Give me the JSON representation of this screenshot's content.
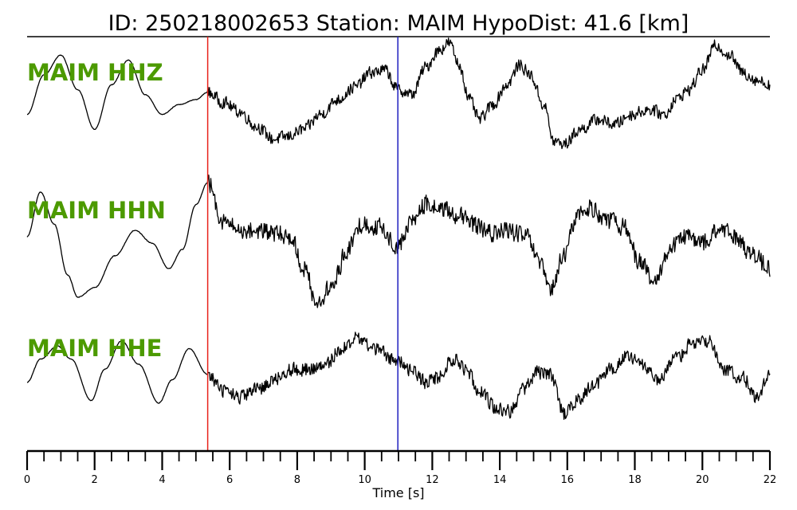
{
  "header": {
    "title": "ID: 250218002653   Station: MAIM   HypoDist:    41.6 [km]"
  },
  "colors": {
    "label": "#4c9a00",
    "p_pick": "#e8211b",
    "s_pick": "#1f1fbf",
    "trace": "#000000"
  },
  "chart_data": {
    "type": "line",
    "xlabel": "Time [s]",
    "xlim": [
      0,
      22
    ],
    "major_ticks": [
      0,
      2,
      4,
      6,
      8,
      10,
      12,
      14,
      16,
      18,
      20,
      22
    ],
    "minor_tick_step": 0.5,
    "picks": [
      {
        "phase": "P",
        "time": 5.35,
        "color": "#e8211b"
      },
      {
        "phase": "S",
        "time": 10.98,
        "color": "#1f1fbf"
      }
    ],
    "series": [
      {
        "name": "MAIM HHZ",
        "t": [
          0.0,
          0.5,
          1.0,
          1.5,
          2.0,
          2.5,
          3.0,
          3.5,
          4.0,
          4.5,
          5.0,
          5.35,
          5.8,
          6.3,
          6.8,
          7.3,
          7.7,
          8.2,
          8.7,
          9.2,
          9.7,
          10.2,
          10.6,
          10.98,
          11.4,
          11.8,
          12.2,
          12.5,
          12.8,
          13.1,
          13.4,
          13.8,
          14.2,
          14.6,
          14.9,
          15.3,
          15.6,
          15.9,
          16.4,
          16.9,
          17.4,
          17.9,
          18.4,
          18.9,
          19.2,
          19.6,
          20.0,
          20.4,
          20.8,
          21.2,
          21.6,
          22.0
        ],
        "y": [
          -0.3,
          0.5,
          0.9,
          0.2,
          -0.6,
          0.3,
          0.8,
          0.1,
          -0.3,
          -0.1,
          0.0,
          0.15,
          -0.05,
          -0.25,
          -0.55,
          -0.8,
          -0.75,
          -0.6,
          -0.3,
          0.0,
          0.25,
          0.55,
          0.6,
          0.2,
          0.1,
          0.65,
          1.0,
          1.15,
          0.7,
          0.0,
          -0.4,
          -0.1,
          0.3,
          0.7,
          0.5,
          -0.1,
          -0.85,
          -0.9,
          -0.6,
          -0.4,
          -0.5,
          -0.3,
          -0.2,
          -0.3,
          0.0,
          0.2,
          0.6,
          1.1,
          0.9,
          0.55,
          0.4,
          0.3
        ],
        "noise_from": 5.35,
        "noise": 0.12
      },
      {
        "name": "MAIM HHN",
        "t": [
          0.0,
          0.4,
          0.8,
          1.2,
          1.5,
          2.0,
          2.6,
          3.2,
          3.7,
          4.2,
          4.6,
          5.0,
          5.35,
          5.8,
          6.3,
          6.8,
          7.3,
          7.8,
          8.2,
          8.6,
          9.0,
          9.5,
          9.9,
          10.4,
          10.98,
          11.4,
          11.8,
          12.2,
          12.7,
          13.2,
          13.7,
          14.2,
          14.8,
          15.2,
          15.5,
          15.9,
          16.3,
          16.7,
          17.2,
          17.7,
          18.1,
          18.6,
          19.0,
          19.5,
          20.0,
          20.5,
          21.0,
          21.5,
          22.0
        ],
        "y": [
          0.0,
          0.7,
          0.2,
          -0.6,
          -0.95,
          -0.8,
          -0.3,
          0.1,
          -0.1,
          -0.5,
          -0.2,
          0.5,
          0.85,
          0.25,
          0.1,
          0.1,
          0.05,
          0.0,
          -0.5,
          -1.05,
          -0.8,
          -0.2,
          0.2,
          0.15,
          -0.15,
          0.25,
          0.5,
          0.45,
          0.35,
          0.2,
          0.05,
          0.1,
          0.0,
          -0.45,
          -0.85,
          -0.3,
          0.35,
          0.45,
          0.25,
          0.15,
          -0.35,
          -0.75,
          -0.2,
          0.0,
          -0.1,
          0.1,
          0.0,
          -0.3,
          -0.5
        ],
        "noise_from": 5.35,
        "noise": 0.14
      },
      {
        "name": "MAIM HHE",
        "t": [
          0.0,
          0.4,
          0.9,
          1.3,
          1.9,
          2.3,
          2.8,
          3.3,
          3.9,
          4.3,
          4.8,
          5.35,
          5.8,
          6.3,
          6.8,
          7.3,
          7.8,
          8.3,
          8.8,
          9.3,
          9.8,
          10.3,
          10.98,
          11.4,
          11.8,
          12.2,
          12.6,
          13.0,
          13.4,
          13.9,
          14.3,
          14.7,
          15.1,
          15.5,
          15.9,
          16.3,
          16.8,
          17.3,
          17.7,
          18.2,
          18.7,
          19.2,
          19.7,
          20.2,
          20.7,
          21.2,
          21.6,
          22.0
        ],
        "y": [
          -0.15,
          0.3,
          0.55,
          0.3,
          -0.5,
          0.1,
          0.65,
          0.2,
          -0.55,
          -0.1,
          0.5,
          0.0,
          -0.3,
          -0.45,
          -0.3,
          -0.1,
          0.1,
          0.1,
          0.15,
          0.5,
          0.7,
          0.5,
          0.25,
          0.1,
          -0.15,
          -0.05,
          0.3,
          0.1,
          -0.3,
          -0.65,
          -0.7,
          -0.3,
          0.05,
          0.0,
          -0.75,
          -0.5,
          -0.2,
          0.1,
          0.35,
          0.2,
          -0.15,
          0.3,
          0.6,
          0.65,
          0.05,
          -0.05,
          -0.45,
          0.0
        ],
        "noise_from": 5.35,
        "noise": 0.13
      }
    ]
  }
}
